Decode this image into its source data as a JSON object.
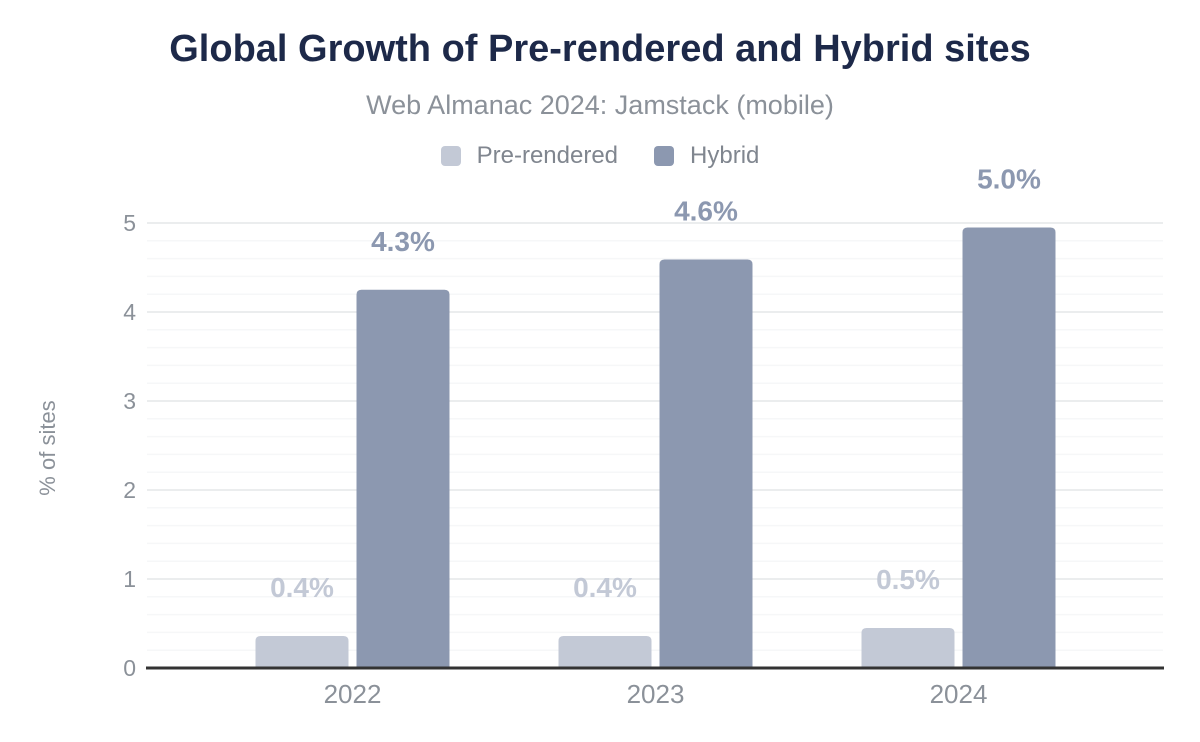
{
  "header": {
    "title": "Global Growth of Pre-rendered and Hybrid sites",
    "subtitle": "Web Almanac 2024: Jamstack (mobile)"
  },
  "chart_data": {
    "type": "bar",
    "title": "Global Growth of Pre-rendered and Hybrid sites",
    "subtitle": "Web Almanac 2024: Jamstack (mobile)",
    "categories": [
      "2022",
      "2023",
      "2024"
    ],
    "series": [
      {
        "name": "Pre-rendered",
        "color": "#c3c9d6",
        "values": [
          0.36,
          0.36,
          0.45
        ],
        "labels": [
          "0.4%",
          "0.4%",
          "0.5%"
        ]
      },
      {
        "name": "Hybrid",
        "color": "#8c98b0",
        "values": [
          4.25,
          4.59,
          4.95
        ],
        "labels": [
          "4.3%",
          "4.6%",
          "5.0%"
        ]
      }
    ],
    "xlabel": "",
    "ylabel": "% of sites",
    "ylim": [
      0,
      5
    ],
    "yticks": [
      0,
      1,
      2,
      3,
      4,
      5
    ],
    "grid": {
      "major_step": 1,
      "minor_step": 0.2,
      "visible": true
    },
    "legend_position": "top",
    "value_labels_visible": true
  },
  "colors": {
    "title": "#1d2949",
    "muted_text": "#8b9199",
    "legend_text": "#80868f",
    "axis_line": "#333333",
    "grid_major": "#ebedee",
    "grid_minor": "#f6f7f8",
    "background": "#ffffff"
  }
}
